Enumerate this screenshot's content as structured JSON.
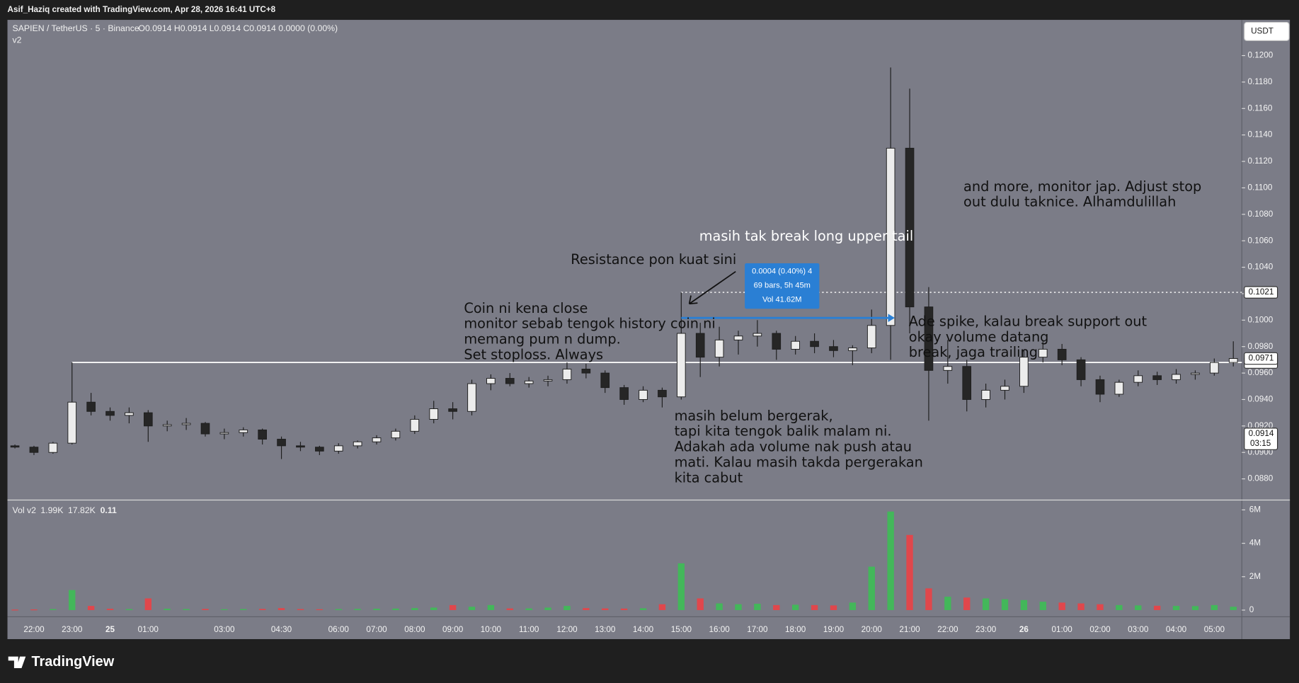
{
  "header": "Asif_Haziq created with TradingView.com, Apr 28, 2026 16:41 UTC+8",
  "brand": "TradingView",
  "chart_data": {
    "type": "candlestick",
    "title": "SAPIEN / TetherUS · 5 · Binance",
    "ohlc": "O0.0914 H0.0914 L0.0914 C0.0914 0.0000 (0.00%)",
    "indicator": "v2",
    "currency": "USDT",
    "up_color": "#ececec",
    "down_color": "#262626",
    "wick_color": "#1e1e1e",
    "categories": [
      null,
      "22:00",
      null,
      "23:00",
      null,
      "25",
      null,
      "01:00",
      null,
      null,
      null,
      "03:00",
      null,
      null,
      "04:30",
      null,
      null,
      "06:00",
      null,
      "07:00",
      null,
      "08:00",
      null,
      "09:00",
      null,
      "10:00",
      null,
      "11:00",
      null,
      "12:00",
      null,
      "13:00",
      null,
      "14:00",
      null,
      "15:00",
      null,
      "16:00",
      null,
      "17:00",
      null,
      "18:00",
      null,
      "19:00",
      null,
      "20:00",
      null,
      "21:00",
      null,
      "22:00",
      null,
      "23:00",
      null,
      "26",
      null,
      "01:00",
      null,
      "02:00",
      null,
      "03:00",
      null,
      "04:00",
      null,
      "05:00",
      null
    ],
    "open": [
      0.0905,
      0.0904,
      0.09,
      0.0907,
      0.0938,
      0.0931,
      0.0928,
      0.093,
      0.092,
      0.0921,
      0.0922,
      0.0914,
      0.0915,
      0.0917,
      0.091,
      0.0905,
      0.0904,
      0.0901,
      0.0905,
      0.0908,
      0.0911,
      0.0916,
      0.0925,
      0.0933,
      0.0931,
      0.0952,
      0.0956,
      0.0952,
      0.0954,
      0.0955,
      0.0963,
      0.096,
      0.0949,
      0.094,
      0.0947,
      0.0942,
      0.099,
      0.0972,
      0.0985,
      0.0988,
      0.099,
      0.0978,
      0.0984,
      0.098,
      0.0977,
      0.0979,
      0.0996,
      0.113,
      0.101,
      0.0962,
      0.0965,
      0.094,
      0.0947,
      0.095,
      0.0972,
      0.0978,
      0.097,
      0.0955,
      0.0944,
      0.0953,
      0.0958,
      0.0955,
      0.0959,
      0.096,
      0.0968
    ],
    "high": [
      0.0906,
      0.0905,
      0.0908,
      0.0968,
      0.0945,
      0.0934,
      0.0934,
      0.0932,
      0.0924,
      0.0926,
      0.0923,
      0.0918,
      0.0919,
      0.0918,
      0.0912,
      0.0908,
      0.0905,
      0.0907,
      0.0909,
      0.0913,
      0.0918,
      0.0928,
      0.0939,
      0.0938,
      0.0955,
      0.0959,
      0.096,
      0.0957,
      0.0958,
      0.0968,
      0.0967,
      0.0962,
      0.0951,
      0.095,
      0.0949,
      0.1021,
      0.0998,
      0.0995,
      0.0992,
      0.1,
      0.0992,
      0.0988,
      0.099,
      0.0985,
      0.0981,
      0.1008,
      0.1191,
      0.1175,
      0.1025,
      0.0985,
      0.097,
      0.0952,
      0.0955,
      0.0978,
      0.0984,
      0.0982,
      0.0972,
      0.0958,
      0.0955,
      0.0962,
      0.0961,
      0.0963,
      0.0962,
      0.0971,
      0.0984
    ],
    "low": [
      0.0903,
      0.0898,
      0.0899,
      0.0906,
      0.0928,
      0.0924,
      0.0922,
      0.0908,
      0.0916,
      0.0917,
      0.0912,
      0.091,
      0.0912,
      0.0906,
      0.0895,
      0.0901,
      0.0898,
      0.0899,
      0.0903,
      0.0906,
      0.0909,
      0.0914,
      0.0922,
      0.0925,
      0.0928,
      0.0947,
      0.095,
      0.0949,
      0.095,
      0.0952,
      0.0956,
      0.0945,
      0.0936,
      0.0938,
      0.0934,
      0.094,
      0.0957,
      0.0965,
      0.0974,
      0.098,
      0.097,
      0.0974,
      0.0975,
      0.0972,
      0.0966,
      0.0975,
      0.097,
      0.099,
      0.0924,
      0.0952,
      0.0931,
      0.0934,
      0.094,
      0.0945,
      0.0968,
      0.0966,
      0.095,
      0.0938,
      0.0942,
      0.095,
      0.0951,
      0.0952,
      0.0955,
      0.0958,
      0.0965
    ],
    "close": [
      0.0904,
      0.09,
      0.0907,
      0.0938,
      0.0931,
      0.0928,
      0.093,
      0.092,
      0.0921,
      0.0922,
      0.0914,
      0.0915,
      0.0917,
      0.091,
      0.0905,
      0.0904,
      0.0901,
      0.0905,
      0.0908,
      0.0911,
      0.0916,
      0.0925,
      0.0933,
      0.0931,
      0.0952,
      0.0956,
      0.0952,
      0.0954,
      0.0955,
      0.0963,
      0.096,
      0.0949,
      0.094,
      0.0947,
      0.0942,
      0.099,
      0.0972,
      0.0985,
      0.0988,
      0.099,
      0.0978,
      0.0984,
      0.098,
      0.0977,
      0.0979,
      0.0996,
      0.113,
      0.101,
      0.0962,
      0.0965,
      0.094,
      0.0947,
      0.095,
      0.0972,
      0.0978,
      0.097,
      0.0955,
      0.0944,
      0.0953,
      0.0958,
      0.0955,
      0.0959,
      0.096,
      0.0968,
      0.0971
    ],
    "ylim": [
      0.0864,
      0.1227
    ],
    "yticks": [
      {
        "value": 0.088,
        "label": "0.0880"
      },
      {
        "value": 0.09,
        "label": "0.0900"
      },
      {
        "value": 0.092,
        "label": "0.0920"
      },
      {
        "value": 0.094,
        "label": "0.0940"
      },
      {
        "value": 0.096,
        "label": "0.0960"
      },
      {
        "value": 0.098,
        "label": "0.0980"
      },
      {
        "value": 0.1,
        "label": "0.1000"
      },
      {
        "value": 0.102,
        "label": "0.1020"
      },
      {
        "value": 0.104,
        "label": "0.1040"
      },
      {
        "value": 0.106,
        "label": "0.1060"
      },
      {
        "value": 0.108,
        "label": "0.1080"
      },
      {
        "value": 0.11,
        "label": "0.1100"
      },
      {
        "value": 0.112,
        "label": "0.1120"
      },
      {
        "value": 0.114,
        "label": "0.1140"
      },
      {
        "value": 0.116,
        "label": "0.1160"
      },
      {
        "value": 0.118,
        "label": "0.1180"
      },
      {
        "value": 0.12,
        "label": "0.1200"
      }
    ],
    "grid": false,
    "hlines": [
      0.0968,
      0.1021
    ],
    "hline_styles": [
      "solid",
      "dotted"
    ],
    "last_price": 0.0971,
    "current": {
      "value": 0.0914,
      "countdown": "03:15"
    },
    "measure": {
      "lines": [
        "0.0004 (0.40%) 4",
        "69 bars, 5h 45m",
        "Vol 41.62M"
      ],
      "color": "#2a7fd4"
    },
    "annotations": [
      {
        "lines": [
          "Resistance pon kuat sini"
        ],
        "color": "#111111"
      },
      {
        "lines": [
          "masih tak break long upper tail"
        ],
        "color": "#ffffff"
      },
      {
        "lines": [
          "Coin ni kena close",
          "monitor sebab tengok history coin ni",
          "memang pum n dump.",
          "Set stoploss. Always"
        ],
        "color": "#111111"
      },
      {
        "lines": [
          "masih belum bergerak,",
          "tapi kita tengok balik malam ni.",
          "Adakah ada volume nak push atau",
          "mati. Kalau masih takda pergerakan",
          "kita cabut"
        ],
        "color": "#111111"
      },
      {
        "lines": [
          "Ade spike, kalau break support out",
          "okay volume datang",
          "break, jaga trailing"
        ],
        "color": "#111111"
      },
      {
        "lines": [
          "and more, monitor jap. Adjust stop",
          "out dulu taknice. Alhamdulillah"
        ],
        "color": "#111111"
      }
    ],
    "volume": {
      "legend": [
        "Vol v2",
        "1.99K",
        "17.82K",
        "0.11"
      ],
      "up_color": "#43b75a",
      "down_color": "#e0474c",
      "values": [
        30000,
        40000,
        60000,
        1200000,
        250000,
        80000,
        60000,
        700000,
        80000,
        60000,
        70000,
        50000,
        60000,
        70000,
        120000,
        60000,
        50000,
        60000,
        70000,
        80000,
        90000,
        120000,
        150000,
        300000,
        200000,
        300000,
        100000,
        100000,
        150000,
        250000,
        120000,
        100000,
        90000,
        110000,
        350000,
        2800000,
        700000,
        400000,
        350000,
        380000,
        300000,
        320000,
        300000,
        280000,
        450000,
        2600000,
        5900000,
        4500000,
        1300000,
        800000,
        750000,
        700000,
        650000,
        600000,
        500000,
        450000,
        400000,
        350000,
        300000,
        280000,
        260000,
        250000,
        240000,
        300000,
        200000
      ],
      "ylim": [
        -400000,
        6540000
      ],
      "yticks": [
        0,
        {
          "value": 2000000,
          "label": "2M"
        },
        {
          "value": 4000000,
          "label": "4M"
        },
        {
          "value": 6000000,
          "label": "6M"
        }
      ]
    }
  }
}
